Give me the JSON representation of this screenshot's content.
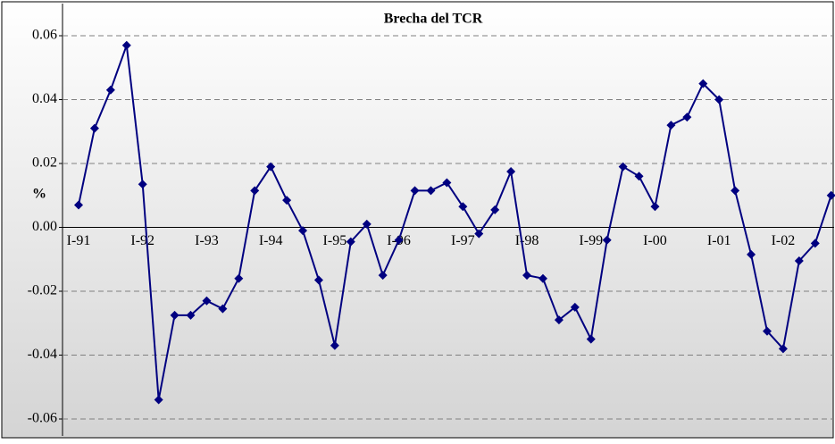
{
  "chart_data": {
    "type": "line",
    "title": "Brecha del TCR",
    "y_label": "%",
    "categories": [
      "I-91",
      null,
      null,
      null,
      "I-92",
      null,
      null,
      null,
      "I-93",
      null,
      null,
      null,
      "I-94",
      null,
      null,
      null,
      "I-95",
      null,
      null,
      null,
      "I-96",
      null,
      null,
      null,
      "I-97",
      null,
      null,
      null,
      "I-98",
      null,
      null,
      null,
      "I-99",
      null,
      null,
      null,
      "I-00",
      null,
      null,
      null,
      "I-01",
      null,
      null,
      null,
      "I-02",
      null,
      null,
      null
    ],
    "series": [
      {
        "name": "Brecha del TCR",
        "color": "#000080",
        "values": [
          0.007,
          0.031,
          0.043,
          0.057,
          0.0135,
          -0.054,
          -0.0275,
          -0.0275,
          -0.023,
          -0.0255,
          -0.016,
          0.0115,
          0.019,
          0.0085,
          -0.001,
          -0.0165,
          -0.037,
          -0.0045,
          0.001,
          -0.015,
          -0.004,
          0.0115,
          0.0115,
          0.014,
          0.0065,
          -0.002,
          0.0055,
          0.0175,
          -0.015,
          -0.016,
          -0.029,
          -0.025,
          -0.035,
          -0.004,
          0.019,
          0.016,
          0.0065,
          0.032,
          0.0345,
          0.045,
          0.04,
          0.0115,
          -0.0085,
          -0.0325,
          -0.038,
          -0.0105,
          -0.005,
          0.01
        ]
      }
    ],
    "ylim": [
      -0.06,
      0.06
    ],
    "yticks": [
      -0.06,
      -0.04,
      -0.02,
      {
        "value": 0,
        "label": "0.00"
      },
      0.02,
      0.04,
      0.06
    ],
    "grid": true
  }
}
